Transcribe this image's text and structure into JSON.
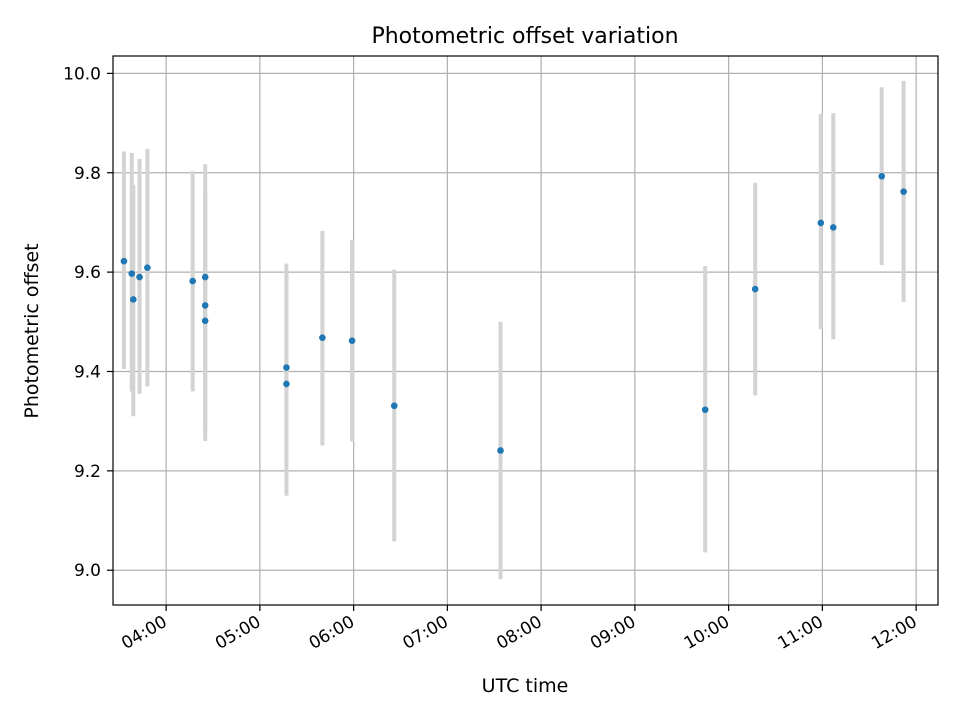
{
  "chart_data": {
    "type": "scatter",
    "title": "Photometric offset variation",
    "xlabel": "UTC time",
    "ylabel": "Photometric offset",
    "xlim": [
      "03:26",
      "12:14"
    ],
    "ylim": [
      8.93,
      10.035
    ],
    "x_ticks": [
      "04:00",
      "05:00",
      "06:00",
      "07:00",
      "08:00",
      "09:00",
      "10:00",
      "11:00",
      "12:00"
    ],
    "y_ticks": [
      9.0,
      9.2,
      9.4,
      9.6,
      9.8,
      10.0
    ],
    "y_tick_labels": [
      "9.0",
      "9.2",
      "9.4",
      "9.6",
      "9.8",
      "10.0"
    ],
    "grid": true,
    "colors": {
      "points": "#1f77b4",
      "errorbars": "#d3d3d3",
      "grid": "#b0b0b0"
    },
    "points": [
      {
        "time": "03:33",
        "y": 9.622,
        "ylow": 9.405,
        "yhigh": 9.843
      },
      {
        "time": "03:38",
        "y": 9.597,
        "ylow": 9.36,
        "yhigh": 9.84
      },
      {
        "time": "03:39",
        "y": 9.545,
        "ylow": 9.31,
        "yhigh": 9.775
      },
      {
        "time": "03:43",
        "y": 9.59,
        "ylow": 9.355,
        "yhigh": 9.828
      },
      {
        "time": "03:48",
        "y": 9.609,
        "ylow": 9.37,
        "yhigh": 9.848
      },
      {
        "time": "04:17",
        "y": 9.582,
        "ylow": 9.36,
        "yhigh": 9.803
      },
      {
        "time": "04:25",
        "y": 9.59,
        "ylow": 9.36,
        "yhigh": 9.817
      },
      {
        "time": "04:25",
        "y": 9.533,
        "ylow": 9.28,
        "yhigh": 9.77
      },
      {
        "time": "04:25",
        "y": 9.502,
        "ylow": 9.26,
        "yhigh": 9.74
      },
      {
        "time": "05:17",
        "y": 9.408,
        "ylow": 9.2,
        "yhigh": 9.617
      },
      {
        "time": "05:17",
        "y": 9.375,
        "ylow": 9.15,
        "yhigh": 9.6
      },
      {
        "time": "05:40",
        "y": 9.468,
        "ylow": 9.251,
        "yhigh": 9.683
      },
      {
        "time": "05:59",
        "y": 9.462,
        "ylow": 9.259,
        "yhigh": 9.665
      },
      {
        "time": "06:26",
        "y": 9.331,
        "ylow": 9.058,
        "yhigh": 9.605
      },
      {
        "time": "07:34",
        "y": 9.241,
        "ylow": 8.982,
        "yhigh": 9.5
      },
      {
        "time": "09:45",
        "y": 9.323,
        "ylow": 9.036,
        "yhigh": 9.612
      },
      {
        "time": "10:17",
        "y": 9.566,
        "ylow": 9.352,
        "yhigh": 9.78
      },
      {
        "time": "10:59",
        "y": 9.699,
        "ylow": 9.485,
        "yhigh": 9.918
      },
      {
        "time": "11:07",
        "y": 9.69,
        "ylow": 9.465,
        "yhigh": 9.92
      },
      {
        "time": "11:38",
        "y": 9.793,
        "ylow": 9.614,
        "yhigh": 9.972
      },
      {
        "time": "11:52",
        "y": 9.762,
        "ylow": 9.54,
        "yhigh": 9.985
      }
    ]
  }
}
